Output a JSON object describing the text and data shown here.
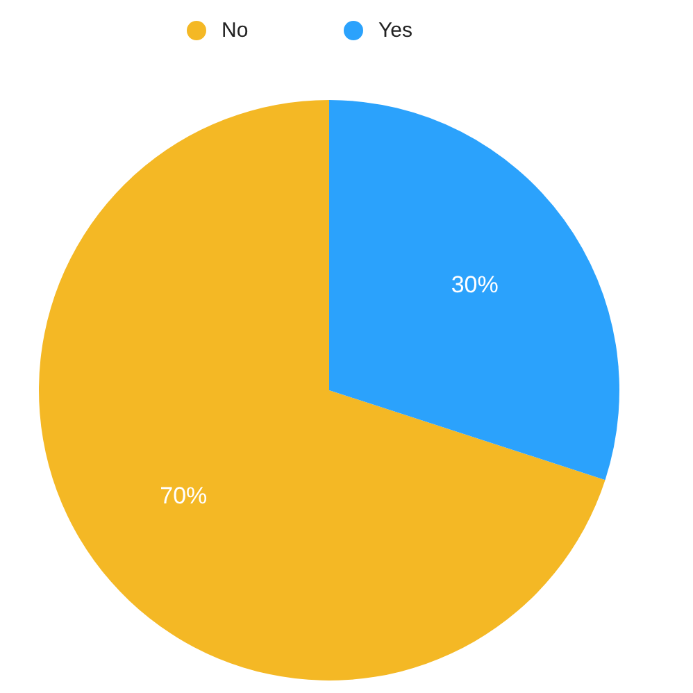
{
  "chart_data": {
    "type": "pie",
    "categories": [
      "No",
      "Yes"
    ],
    "values": [
      70,
      30
    ],
    "colors": [
      "#f4b825",
      "#2ba2fc"
    ],
    "value_labels": [
      "70%",
      "30%"
    ],
    "legend": "top"
  }
}
